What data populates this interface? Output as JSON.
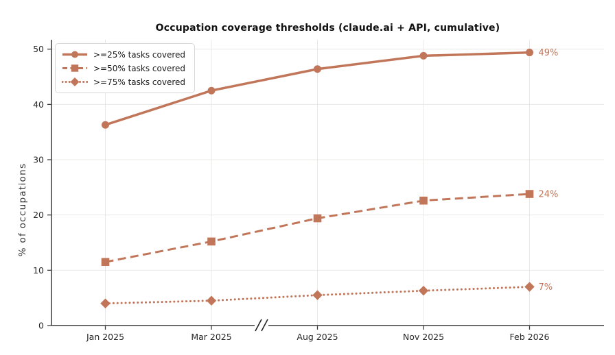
{
  "chart_data": {
    "type": "line",
    "title": "Occupation coverage thresholds (claude.ai + API, cumulative)",
    "xlabel": "",
    "ylabel": "% of occupations",
    "categories": [
      "Jan 2025",
      "Mar 2025",
      "Aug 2025",
      "Nov 2025",
      "Feb 2026"
    ],
    "yticks": [
      0,
      10,
      20,
      30,
      40,
      50
    ],
    "ylim": [
      0,
      51.7
    ],
    "grid": true,
    "legend_position": "upper-left",
    "axis_break": {
      "symbol": "//",
      "between": [
        "Mar 2025",
        "Aug 2025"
      ]
    },
    "series": [
      {
        "name": ">=25% tasks covered",
        "marker": "circle",
        "line_style": "solid",
        "values": [
          36.3,
          42.5,
          46.4,
          48.8,
          49.4
        ],
        "end_label": "49%"
      },
      {
        "name": ">=50% tasks covered",
        "marker": "square",
        "line_style": "dashed",
        "values": [
          11.5,
          15.2,
          19.4,
          22.6,
          23.8
        ],
        "end_label": "24%"
      },
      {
        "name": ">=75% tasks covered",
        "marker": "diamond",
        "line_style": "dotted",
        "values": [
          4.0,
          4.5,
          5.5,
          6.3,
          7.0
        ],
        "end_label": "7%"
      }
    ],
    "colors": {
      "accent": "#C1765A",
      "grid": "#e8e8e6",
      "spine": "#3c3c3c",
      "tick_text": "#262626",
      "title_text": "#111111",
      "break_mark": "#222222"
    }
  }
}
